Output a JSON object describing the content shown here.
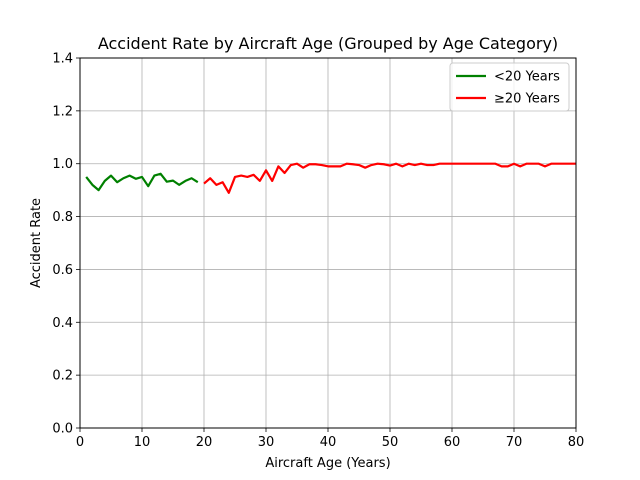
{
  "chart_data": {
    "type": "line",
    "title": "Accident Rate by Aircraft Age (Grouped by Age Category)",
    "xlabel": "Aircraft Age (Years)",
    "ylabel": "Accident Rate",
    "xlim": [
      0,
      80
    ],
    "ylim": [
      0,
      1.4
    ],
    "xticks": [
      0,
      10,
      20,
      30,
      40,
      50,
      60,
      70,
      80
    ],
    "xtick_labels": [
      "0",
      "10",
      "20",
      "30",
      "40",
      "50",
      "60",
      "70",
      "80"
    ],
    "yticks": [
      0,
      0.2,
      0.4,
      0.6,
      0.8,
      1.0,
      1.2,
      1.4
    ],
    "ytick_labels": [
      "0.0",
      "0.2",
      "0.4",
      "0.6",
      "0.8",
      "1.0",
      "1.2",
      "1.4"
    ],
    "grid": true,
    "legend_position": "top-right",
    "series": [
      {
        "name": "<20 Years",
        "color": "#008000",
        "x": [
          1,
          2,
          3,
          4,
          5,
          6,
          7,
          8,
          9,
          10,
          11,
          12,
          13,
          14,
          15,
          16,
          17,
          18,
          19
        ],
        "y": [
          0.95,
          0.92,
          0.9,
          0.935,
          0.955,
          0.93,
          0.945,
          0.955,
          0.943,
          0.95,
          0.915,
          0.955,
          0.962,
          0.932,
          0.936,
          0.92,
          0.935,
          0.945,
          0.93
        ]
      },
      {
        "name": "≥20 Years",
        "color": "#ff0000",
        "x": [
          20,
          21,
          22,
          23,
          24,
          25,
          26,
          27,
          28,
          29,
          30,
          31,
          32,
          33,
          34,
          35,
          36,
          37,
          38,
          39,
          40,
          41,
          42,
          43,
          44,
          45,
          46,
          47,
          48,
          49,
          50,
          51,
          52,
          53,
          54,
          55,
          56,
          57,
          58,
          59,
          60,
          61,
          62,
          63,
          64,
          65,
          66,
          67,
          68,
          69,
          70,
          71,
          72,
          73,
          74,
          75,
          76,
          77,
          78,
          79,
          80
        ],
        "y": [
          0.925,
          0.945,
          0.92,
          0.93,
          0.89,
          0.95,
          0.955,
          0.95,
          0.958,
          0.935,
          0.975,
          0.935,
          0.99,
          0.965,
          0.995,
          1.0,
          0.985,
          0.998,
          0.998,
          0.995,
          0.99,
          0.99,
          0.99,
          1.0,
          0.998,
          0.995,
          0.985,
          0.995,
          1.0,
          0.998,
          0.993,
          1.0,
          0.99,
          1.0,
          0.995,
          1.0,
          0.995,
          0.995,
          1.0,
          1.0,
          1.0,
          1.0,
          1.0,
          1.0,
          1.0,
          1.0,
          1.0,
          1.0,
          0.99,
          0.99,
          1.0,
          0.99,
          1.0,
          1.0,
          1.0,
          0.99,
          1.0,
          1.0,
          1.0,
          1.0,
          1.0
        ]
      }
    ]
  }
}
